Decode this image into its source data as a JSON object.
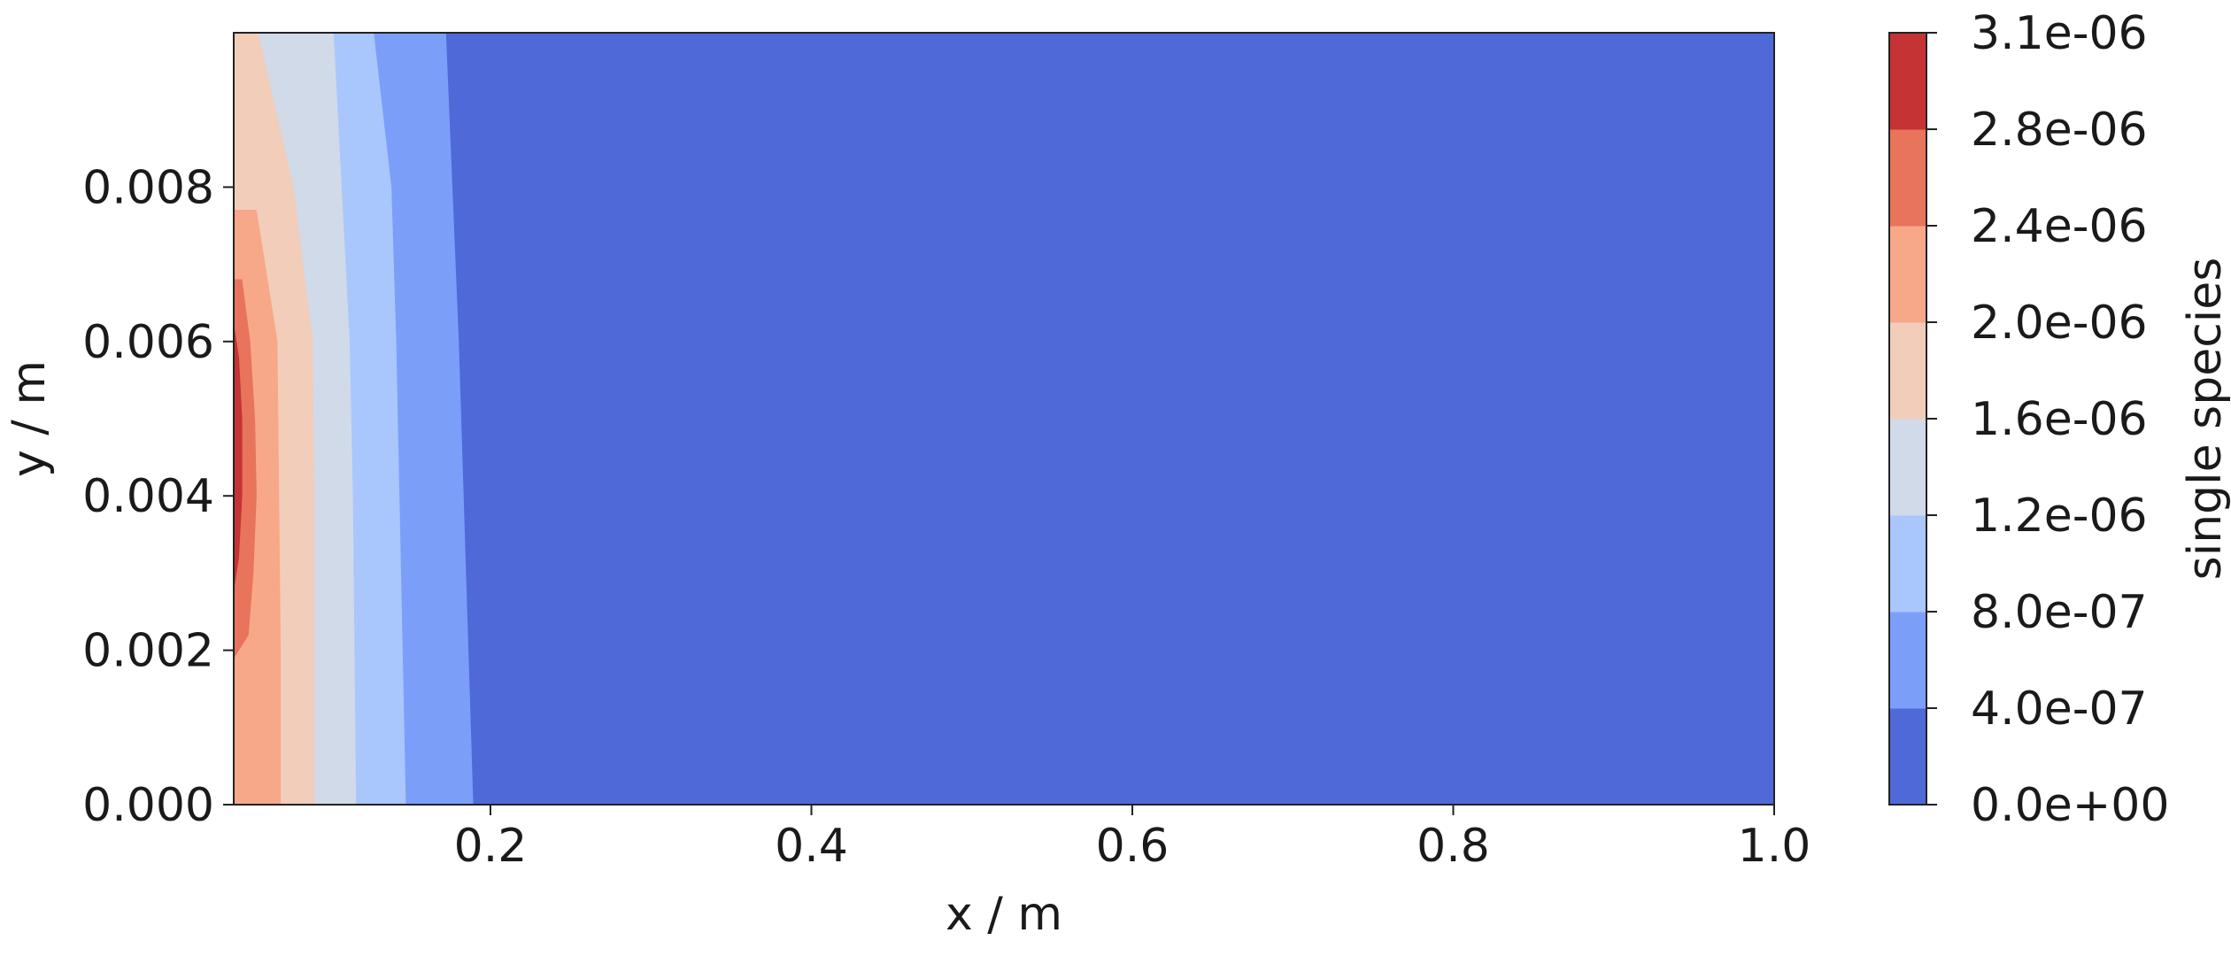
{
  "chart_data": {
    "type": "contour",
    "xlabel": "x / m",
    "ylabel": "y / m",
    "xlim": [
      0.04,
      1.0
    ],
    "ylim": [
      0.0,
      0.01
    ],
    "x_ticks": [
      0.2,
      0.4,
      0.6,
      0.8,
      1.0
    ],
    "x_tick_labels": [
      "0.2",
      "0.4",
      "0.6",
      "0.8",
      "1.0"
    ],
    "y_ticks": [
      0.0,
      0.002,
      0.004,
      0.006,
      0.008
    ],
    "y_tick_labels": [
      "0.000",
      "0.002",
      "0.004",
      "0.006",
      "0.008"
    ],
    "colorbar": {
      "label": "single species",
      "levels": [
        0.0,
        4e-07,
        8e-07,
        1.2e-06,
        1.6e-06,
        2e-06,
        2.4e-06,
        2.8e-06,
        3.1e-06
      ],
      "tick_labels": [
        "0.0e+00",
        "4.0e-07",
        "8.0e-07",
        "1.2e-06",
        "1.6e-06",
        "2.0e-06",
        "2.4e-06",
        "2.8e-06",
        "3.1e-06"
      ],
      "colors": [
        "#4f69d9",
        "#7b9ff9",
        "#a9c6fd",
        "#d0dae9",
        "#f1cdba",
        "#f7a889",
        "#e7745b",
        "#c53334"
      ]
    },
    "contour_boundaries": [
      {
        "lower_level": 4e-07,
        "points": [
          [
            0.189,
            0.0
          ],
          [
            0.186,
            0.002
          ],
          [
            0.183,
            0.004
          ],
          [
            0.18,
            0.006
          ],
          [
            0.176,
            0.008
          ],
          [
            0.172,
            0.01
          ]
        ]
      },
      {
        "lower_level": 8e-07,
        "points": [
          [
            0.147,
            0.0
          ],
          [
            0.145,
            0.002
          ],
          [
            0.143,
            0.004
          ],
          [
            0.141,
            0.006
          ],
          [
            0.138,
            0.008
          ],
          [
            0.127,
            0.01
          ]
        ]
      },
      {
        "lower_level": 1.2e-06,
        "points": [
          [
            0.116,
            0.0
          ],
          [
            0.115,
            0.002
          ],
          [
            0.114,
            0.004
          ],
          [
            0.112,
            0.006
          ],
          [
            0.107,
            0.008
          ],
          [
            0.102,
            0.01
          ]
        ]
      },
      {
        "lower_level": 1.6e-06,
        "points": [
          [
            0.09,
            0.0
          ],
          [
            0.09,
            0.002
          ],
          [
            0.09,
            0.004
          ],
          [
            0.089,
            0.006
          ],
          [
            0.077,
            0.008
          ],
          [
            0.055,
            0.01
          ]
        ]
      },
      {
        "lower_level": 2e-06,
        "points": [
          [
            0.069,
            0.0
          ],
          [
            0.069,
            0.002
          ],
          [
            0.068,
            0.004
          ],
          [
            0.067,
            0.006
          ],
          [
            0.054,
            0.0077
          ],
          [
            0.04,
            0.0077
          ]
        ]
      },
      {
        "lower_level": 2.4e-06,
        "points": [
          [
            0.04,
            0.0019
          ],
          [
            0.049,
            0.0022
          ],
          [
            0.052,
            0.003
          ],
          [
            0.054,
            0.004
          ],
          [
            0.053,
            0.005
          ],
          [
            0.05,
            0.006
          ],
          [
            0.045,
            0.0068
          ],
          [
            0.04,
            0.0068
          ]
        ]
      },
      {
        "lower_level": 2.8e-06,
        "points": [
          [
            0.04,
            0.0028
          ],
          [
            0.043,
            0.0032
          ],
          [
            0.045,
            0.004
          ],
          [
            0.045,
            0.005
          ],
          [
            0.043,
            0.0058
          ],
          [
            0.04,
            0.0062
          ]
        ]
      }
    ]
  }
}
